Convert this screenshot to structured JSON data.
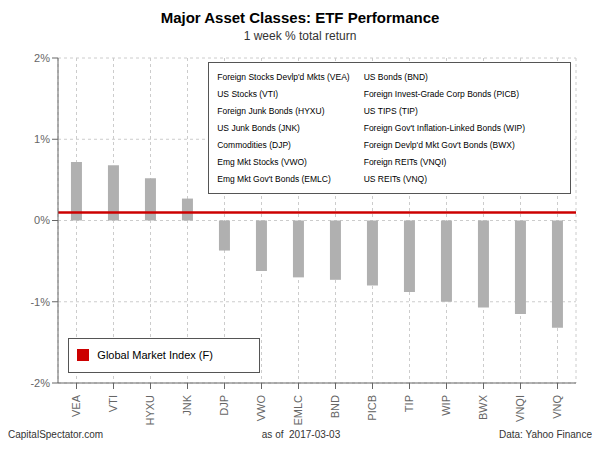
{
  "chart_data": {
    "type": "bar",
    "title": "Major Asset Classes: ETF Performance",
    "subtitle": "1 week % total return",
    "categories": [
      "VEA",
      "VTI",
      "HYXU",
      "JNK",
      "DJP",
      "VWO",
      "EMLC",
      "BND",
      "PICB",
      "TIP",
      "WIP",
      "BWX",
      "VNQI",
      "VNQ"
    ],
    "values": [
      0.72,
      0.68,
      0.52,
      0.27,
      -0.37,
      -0.62,
      -0.7,
      -0.73,
      -0.8,
      -0.88,
      -1.0,
      -1.07,
      -1.15,
      -1.32
    ],
    "color": "#b0b0b0",
    "ylim": [
      -2.0,
      2.0
    ],
    "yticks": [
      {
        "value": -2.0,
        "label": "-2%"
      },
      {
        "value": -1.0,
        "label": "-1%"
      },
      {
        "value": 0.0,
        "label": "0%"
      },
      {
        "value": 1.0,
        "label": "1%"
      },
      {
        "value": 2.0,
        "label": "2%"
      }
    ],
    "grid": true,
    "reference_line": {
      "value": 0.1,
      "color": "#cc0000",
      "label": "Global Market Index (F)"
    },
    "annotations": [
      [
        "Foreign Stocks Devlp'd Mkts (VEA)",
        "US Stocks (VTI)",
        "Foreign Junk Bonds (HYXU)",
        "US Junk Bonds (JNK)",
        "Commodities (DJP)",
        "Emg Mkt Stocks (VWO)",
        "Emg Mkt Gov't Bonds (EMLC)"
      ],
      [
        "US Bonds (BND)",
        "Foreign Invest-Grade Corp Bonds (PICB)",
        "US TIPS (TIP)",
        "Foreign Gov't Inflation-Linked Bonds (WIP)",
        "Foreign Devlp'd Mkt Gov't Bonds (BWX)",
        "Foreign REITs (VNQI)",
        "US REITs (VNQ)"
      ]
    ],
    "footer": [
      "CapitalSpectator.com",
      "as of  2017-03-03",
      "Data: Yahoo Finance"
    ]
  }
}
